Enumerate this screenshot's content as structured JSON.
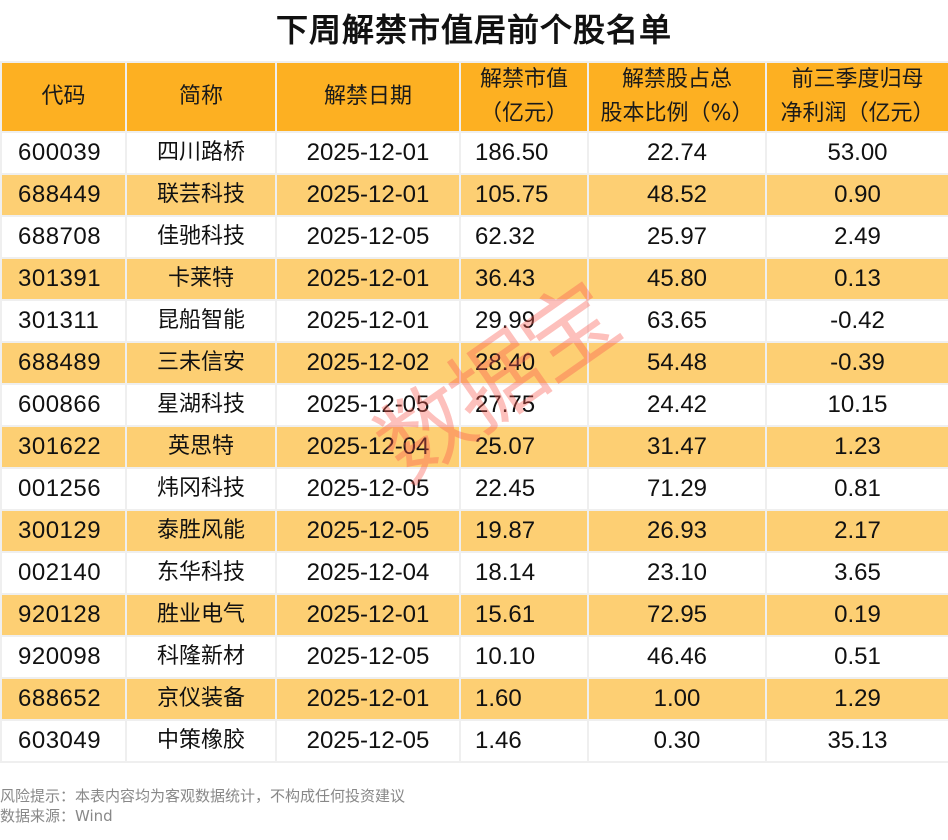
{
  "title": "下周解禁市值居前个股名单",
  "colors": {
    "header_bg": "#fdb022",
    "alt_row_bg": "#fdcf73",
    "border": "#efefef",
    "watermark": "#fa5a50"
  },
  "table": {
    "headers": [
      "代码",
      "简称",
      "解禁日期",
      "解禁市值（亿元）",
      "解禁股占总股本比例（%）",
      "前三季度归母净利润（亿元）"
    ],
    "rows": [
      {
        "code": "600039",
        "name": "四川路桥",
        "date": "2025-12-01",
        "unlock_value": "186.50",
        "ratio": "22.74",
        "profit": "53.00"
      },
      {
        "code": "688449",
        "name": "联芸科技",
        "date": "2025-12-01",
        "unlock_value": "105.75",
        "ratio": "48.52",
        "profit": "0.90"
      },
      {
        "code": "688708",
        "name": "佳驰科技",
        "date": "2025-12-05",
        "unlock_value": "62.32",
        "ratio": "25.97",
        "profit": "2.49"
      },
      {
        "code": "301391",
        "name": "卡莱特",
        "date": "2025-12-01",
        "unlock_value": "36.43",
        "ratio": "45.80",
        "profit": "0.13"
      },
      {
        "code": "301311",
        "name": "昆船智能",
        "date": "2025-12-01",
        "unlock_value": "29.99",
        "ratio": "63.65",
        "profit": "-0.42"
      },
      {
        "code": "688489",
        "name": "三未信安",
        "date": "2025-12-02",
        "unlock_value": "28.40",
        "ratio": "54.48",
        "profit": "-0.39"
      },
      {
        "code": "600866",
        "name": "星湖科技",
        "date": "2025-12-05",
        "unlock_value": "27.75",
        "ratio": "24.42",
        "profit": "10.15"
      },
      {
        "code": "301622",
        "name": "英思特",
        "date": "2025-12-04",
        "unlock_value": "25.07",
        "ratio": "31.47",
        "profit": "1.23"
      },
      {
        "code": "001256",
        "name": "炜冈科技",
        "date": "2025-12-05",
        "unlock_value": "22.45",
        "ratio": "71.29",
        "profit": "0.81"
      },
      {
        "code": "300129",
        "name": "泰胜风能",
        "date": "2025-12-05",
        "unlock_value": "19.87",
        "ratio": "26.93",
        "profit": "2.17"
      },
      {
        "code": "002140",
        "name": "东华科技",
        "date": "2025-12-04",
        "unlock_value": "18.14",
        "ratio": "23.10",
        "profit": "3.65"
      },
      {
        "code": "920128",
        "name": "胜业电气",
        "date": "2025-12-01",
        "unlock_value": "15.61",
        "ratio": "72.95",
        "profit": "0.19"
      },
      {
        "code": "920098",
        "name": "科隆新材",
        "date": "2025-12-05",
        "unlock_value": "10.10",
        "ratio": "46.46",
        "profit": "0.51"
      },
      {
        "code": "688652",
        "name": "京仪装备",
        "date": "2025-12-01",
        "unlock_value": "1.60",
        "ratio": "1.00",
        "profit": "1.29"
      },
      {
        "code": "603049",
        "name": "中策橡胶",
        "date": "2025-12-05",
        "unlock_value": "1.46",
        "ratio": "0.30",
        "profit": "35.13"
      }
    ]
  },
  "watermark": "数据宝",
  "footer": {
    "risk_note": "风险提示：本表内容均为客观数据统计，不构成任何投资建议",
    "source": "数据来源：Wind"
  }
}
